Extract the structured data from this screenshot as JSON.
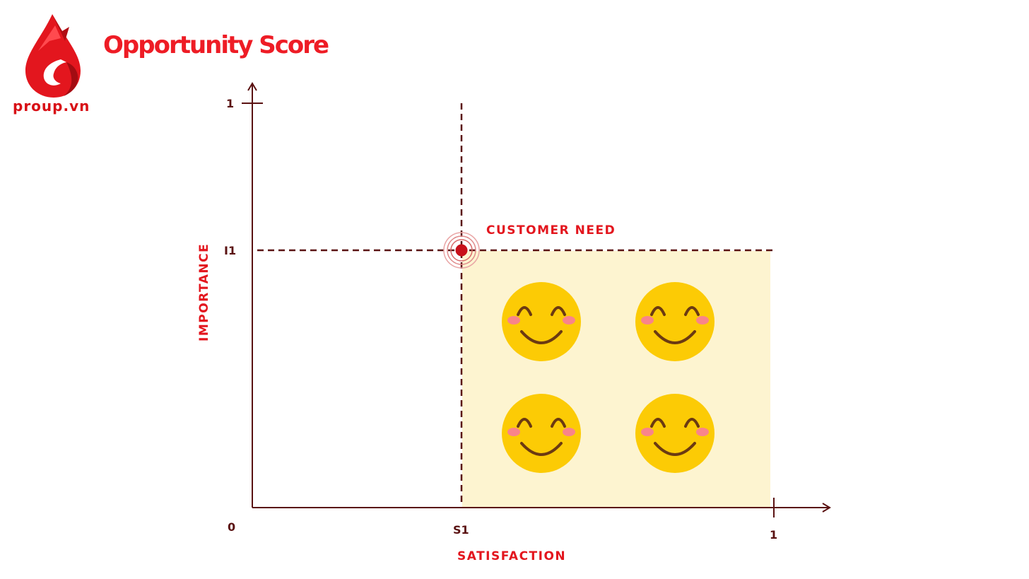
{
  "brand": {
    "logo_text": "proup.vn",
    "color": "#e3161e"
  },
  "title": "Opportunity Score",
  "diagram": {
    "y_axis": {
      "label": "IMPORTANCE",
      "tick_top": "1",
      "tick_mid": "I1"
    },
    "x_axis": {
      "label": "SATISFACTION",
      "tick_origin": "0",
      "tick_mid": "S1",
      "tick_end": "1"
    },
    "point_label": "CUSTOMER NEED",
    "region_color": "#fdf4d0",
    "axis_color": "#5a1212",
    "label_color": "#e3161e",
    "faces": [
      "smiley-face-icon",
      "smiley-face-icon",
      "smiley-face-icon",
      "smiley-face-icon"
    ]
  }
}
